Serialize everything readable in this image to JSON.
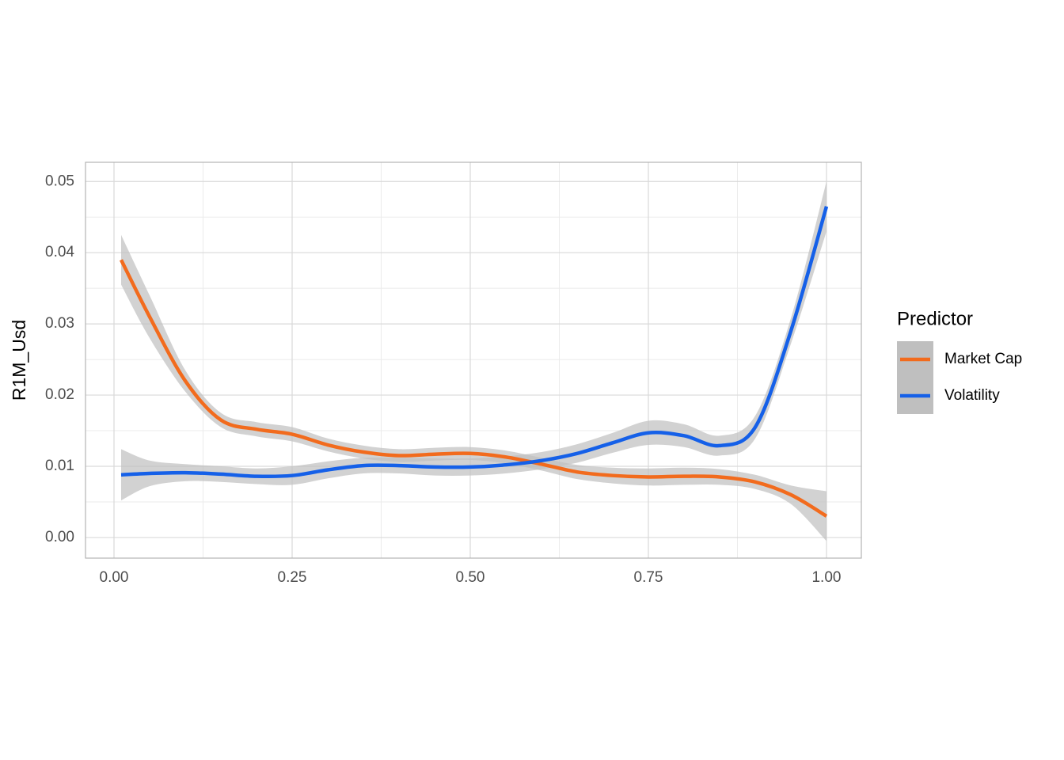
{
  "chart_data": {
    "type": "line",
    "y_label": "R1M_Usd",
    "legend_title": "Predictor",
    "legend_position": "right",
    "grid": true,
    "x": [
      0.01,
      0.05,
      0.1,
      0.15,
      0.2,
      0.25,
      0.3,
      0.35,
      0.4,
      0.45,
      0.5,
      0.55,
      0.6,
      0.65,
      0.7,
      0.75,
      0.8,
      0.85,
      0.9,
      0.95,
      1.0
    ],
    "series": [
      {
        "name": "Market Cap",
        "color": "#f26b1d",
        "band_color": "#bfbfbf",
        "values": [
          0.039,
          0.031,
          0.022,
          0.0165,
          0.0152,
          0.0145,
          0.013,
          0.012,
          0.0115,
          0.0117,
          0.0118,
          0.0113,
          0.0103,
          0.0092,
          0.0087,
          0.0085,
          0.0086,
          0.0085,
          0.0078,
          0.006,
          0.003
        ],
        "lower": [
          0.0355,
          0.028,
          0.0205,
          0.0155,
          0.0142,
          0.0135,
          0.0121,
          0.0111,
          0.0106,
          0.0108,
          0.0109,
          0.0104,
          0.0094,
          0.0082,
          0.0076,
          0.0073,
          0.0074,
          0.0074,
          0.0068,
          0.0047,
          -0.0005
        ],
        "upper": [
          0.0425,
          0.034,
          0.0235,
          0.0175,
          0.0162,
          0.0155,
          0.0139,
          0.0129,
          0.0124,
          0.0126,
          0.0127,
          0.0122,
          0.0112,
          0.0102,
          0.0098,
          0.0097,
          0.0098,
          0.0096,
          0.0088,
          0.0073,
          0.0065
        ]
      },
      {
        "name": "Volatility",
        "color": "#1560e8",
        "band_color": "#bfbfbf",
        "values": [
          0.0088,
          0.009,
          0.0091,
          0.0089,
          0.0086,
          0.0087,
          0.0095,
          0.0101,
          0.0101,
          0.0099,
          0.0099,
          0.0102,
          0.0108,
          0.0118,
          0.0133,
          0.0147,
          0.0143,
          0.0129,
          0.0155,
          0.029,
          0.0465
        ],
        "lower": [
          0.0052,
          0.0072,
          0.0079,
          0.0078,
          0.0075,
          0.0074,
          0.0083,
          0.009,
          0.009,
          0.0087,
          0.0087,
          0.009,
          0.0096,
          0.0105,
          0.0119,
          0.013,
          0.0127,
          0.0115,
          0.0139,
          0.0272,
          0.043
        ],
        "upper": [
          0.0124,
          0.0108,
          0.0103,
          0.01,
          0.0097,
          0.01,
          0.0107,
          0.0112,
          0.0112,
          0.0111,
          0.0111,
          0.0114,
          0.012,
          0.0131,
          0.0147,
          0.0164,
          0.0159,
          0.0143,
          0.0171,
          0.0308,
          0.05
        ]
      }
    ],
    "xlim": [
      -0.04,
      1.0489
    ],
    "ylim": [
      -0.0029,
      0.0527
    ],
    "xticks": [
      {
        "value": 0,
        "label": "0.00"
      },
      0.25,
      {
        "value": 0.5,
        "label": "0.50"
      },
      0.75,
      {
        "value": 1,
        "label": "1.00"
      }
    ],
    "yticks": [
      {
        "value": 0,
        "label": "0.00"
      },
      0.01,
      0.02,
      0.03,
      0.04,
      0.05
    ],
    "xminor": [
      0.125,
      0.375,
      0.625,
      0.875
    ],
    "yminor": [
      0.005,
      0.015,
      0.025,
      0.035,
      0.045
    ]
  }
}
